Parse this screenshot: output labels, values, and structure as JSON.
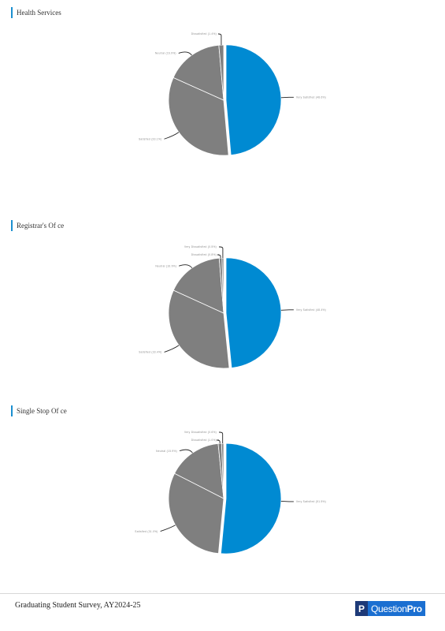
{
  "colors": {
    "primary": "#008ad2",
    "secondary": "#7f7f7f",
    "accent": "#1b8fd0"
  },
  "sections": [
    {
      "title": "Health Services",
      "slices": [
        {
          "label": "Very Satisfied (48.6%)",
          "value": 48.6,
          "color": "primary"
        },
        {
          "label": "Satisfied (33.1%)",
          "value": 33.1,
          "color": "secondary"
        },
        {
          "label": "Neutral (16.9%)",
          "value": 16.9,
          "color": "secondary"
        },
        {
          "label": "Dissatisfied (1.4%)",
          "value": 1.4,
          "color": "secondary"
        }
      ]
    },
    {
      "title": "Registrar's Of ce",
      "slices": [
        {
          "label": "Very Satisfied (48.4%)",
          "value": 48.4,
          "color": "primary"
        },
        {
          "label": "Satisfied (33.4%)",
          "value": 33.4,
          "color": "secondary"
        },
        {
          "label": "Neutral (16.9%)",
          "value": 16.9,
          "color": "secondary"
        },
        {
          "label": "Dissatisfied (0.8%)",
          "value": 0.8,
          "color": "secondary"
        },
        {
          "label": "Very Dissatisfied (0.5%)",
          "value": 0.5,
          "color": "secondary"
        }
      ]
    },
    {
      "title": "Single Stop Of ce",
      "slices": [
        {
          "label": "Very Satisfied (51.5%)",
          "value": 51.5,
          "color": "primary"
        },
        {
          "label": "Satisfied (31.0%)",
          "value": 31.0,
          "color": "secondary"
        },
        {
          "label": "Neutral (15.9%)",
          "value": 15.9,
          "color": "secondary"
        },
        {
          "label": "Dissatisfied (1.0%)",
          "value": 1.0,
          "color": "secondary"
        },
        {
          "label": "Very Dissatisfied (0.6%)",
          "value": 0.6,
          "color": "secondary"
        }
      ]
    }
  ],
  "footer": {
    "text": "Graduating Student Survey, AY2024-25"
  },
  "logo": {
    "mark": "P",
    "word_light": "Question",
    "word_bold": "Pro"
  },
  "chart_data": [
    {
      "type": "pie",
      "title": "Health Services",
      "categories": [
        "Very Satisfied",
        "Satisfied",
        "Neutral",
        "Dissatisfied"
      ],
      "values": [
        48.6,
        33.1,
        16.9,
        1.4
      ]
    },
    {
      "type": "pie",
      "title": "Registrar's Of ce",
      "categories": [
        "Very Satisfied",
        "Satisfied",
        "Neutral",
        "Dissatisfied",
        "Very Dissatisfied"
      ],
      "values": [
        48.4,
        33.4,
        16.9,
        0.8,
        0.5
      ]
    },
    {
      "type": "pie",
      "title": "Single Stop Of ce",
      "categories": [
        "Very Satisfied",
        "Satisfied",
        "Neutral",
        "Dissatisfied",
        "Very Dissatisfied"
      ],
      "values": [
        51.5,
        31.0,
        15.9,
        1.0,
        0.6
      ]
    }
  ]
}
